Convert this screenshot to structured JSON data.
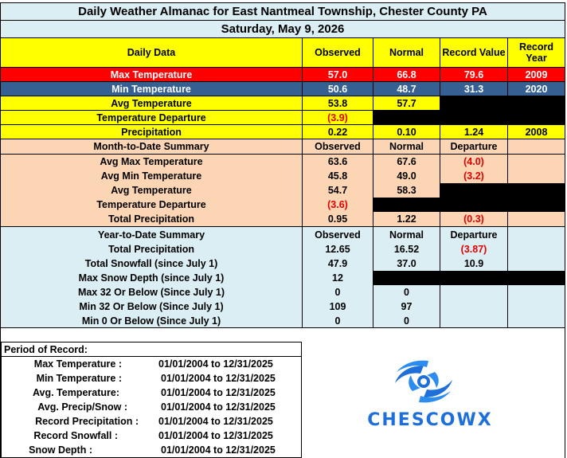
{
  "header": {
    "title": "Daily Weather Almanac for East Nantmeal Township, Chester County PA",
    "date": "Saturday, May 9, 2026"
  },
  "daily": {
    "columns": [
      "Daily Data",
      "Observed",
      "Normal",
      "Record Value",
      "Record Year"
    ],
    "rows": [
      {
        "label": "Max Temperature",
        "observed": "57.0",
        "normal": "66.8",
        "record": "79.6",
        "year": "2009"
      },
      {
        "label": "Min Temperature",
        "observed": "50.6",
        "normal": "48.7",
        "record": "31.3",
        "year": "2020"
      },
      {
        "label": "Avg Temperature",
        "observed": "53.8",
        "normal": "57.7"
      },
      {
        "label": "Temperature Departure",
        "observed": "(3.9)"
      },
      {
        "label": "Precipitation",
        "observed": "0.22",
        "normal": "0.10",
        "record": "1.24",
        "year": "2008"
      }
    ]
  },
  "month": {
    "columns": [
      "Month-to-Date Summary",
      "Observed",
      "Normal",
      "Departure"
    ],
    "rows": [
      {
        "label": "Avg Max Temperature",
        "observed": "63.6",
        "normal": "67.6",
        "departure": "(4.0)"
      },
      {
        "label": "Avg Min Temperature",
        "observed": "45.8",
        "normal": "49.0",
        "departure": "(3.2)"
      },
      {
        "label": "Avg Temperature",
        "observed": "54.7",
        "normal": "58.3"
      },
      {
        "label": "Temperature Departure",
        "observed": "(3.6)"
      },
      {
        "label": "Total Precipitation",
        "observed": "0.95",
        "normal": "1.22",
        "departure": "(0.3)"
      }
    ]
  },
  "year": {
    "columns": [
      "Year-to-Date Summary",
      "Observed",
      "Normal",
      "Departure"
    ],
    "rows": [
      {
        "label": "Total Precipitation",
        "observed": "12.65",
        "normal": "16.52",
        "departure": "(3.87)"
      },
      {
        "label": "Total Snowfall (since July 1)",
        "observed": "47.9",
        "normal": "37.0",
        "departure": "10.9"
      },
      {
        "label": "Max Snow Depth (since July 1)",
        "observed": "12"
      },
      {
        "label": "Max 32 Or Below (Since July 1)",
        "observed": "0",
        "normal": "0"
      },
      {
        "label": "Min 32 Or Below (Since July 1)",
        "observed": "109",
        "normal": "97"
      },
      {
        "label": "Min 0 Or Below (Since July 1)",
        "observed": "0",
        "normal": "0"
      }
    ]
  },
  "period": {
    "title": "Period of Record:",
    "rows": [
      {
        "label": "Max Temperature :",
        "value": "01/01/2004 to 12/31/2025"
      },
      {
        "label": "Min Temperature :",
        "value": "01/01/2004 to 12/31/2025"
      },
      {
        "label": "Avg. Temperature:",
        "value": "01/01/2004 to 12/31/2025"
      },
      {
        "label": "Avg. Precip/Snow :",
        "value": "01/01/2004 to 12/31/2025"
      },
      {
        "label": "Record Precipitation :",
        "value": "01/01/2004 to 12/31/2025"
      },
      {
        "label": "Record Snowfall :",
        "value": "01/01/2004 to 12/31/2025"
      },
      {
        "label": "Snow Depth :",
        "value": "01/01/2004 to 12/31/2025"
      }
    ]
  },
  "logo": {
    "text": "CHESCOWX",
    "icon": "hurricane-icon",
    "color": "#1e6fd9"
  }
}
